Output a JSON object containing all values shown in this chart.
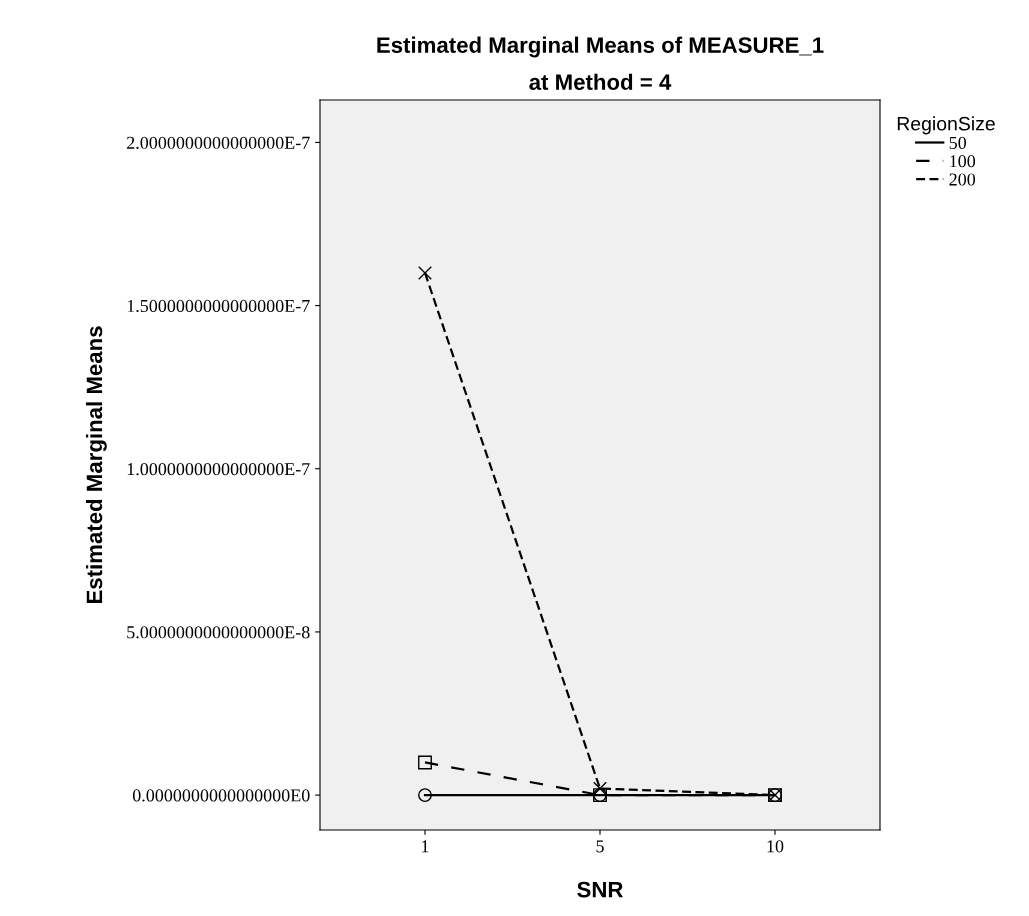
{
  "chart_data": {
    "type": "line",
    "title": "Estimated Marginal Means of MEASURE_1",
    "subtitle": "at Method = 4",
    "xlabel": "SNR",
    "ylabel": "Estimated Marginal Means",
    "legend_title": "RegionSize",
    "categories": [
      "1",
      "5",
      "10"
    ],
    "series": [
      {
        "name": "50",
        "color": "#000000",
        "values": [
          0,
          0,
          0
        ],
        "marker": "circle",
        "line_style": "solid"
      },
      {
        "name": "100",
        "color": "#000000",
        "values": [
          1e-08,
          0,
          0
        ],
        "marker": "square",
        "line_style": "dashed"
      },
      {
        "name": "200",
        "color": "#000000",
        "values": [
          1.6e-07,
          2e-09,
          0
        ],
        "marker": "cross",
        "line_style": "dotted"
      }
    ],
    "ylim": [
      -1.07e-08,
      2.13e-07
    ],
    "yticks": [
      {
        "value": 0,
        "label": "0.0000000000000000E0"
      },
      {
        "value": 5e-08,
        "label": "5.0000000000000000E-8"
      },
      {
        "value": 1e-07,
        "label": "1.0000000000000000E-7"
      },
      {
        "value": 1.5e-07,
        "label": "1.5000000000000000E-7"
      },
      {
        "value": 2e-07,
        "label": "2.0000000000000000E-7"
      }
    ],
    "grid": false,
    "legend": "top right"
  }
}
